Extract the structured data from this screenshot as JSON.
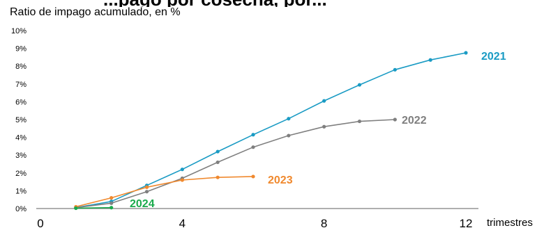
{
  "chart_data": {
    "type": "line",
    "title": "...pago por cosecha, por...",
    "subtitle": "Ratio de impago acumulado, en %",
    "xlabel": "trimestres",
    "ylabel": "",
    "xlim": [
      0,
      12
    ],
    "ylim": [
      0,
      10
    ],
    "xticks": [
      "0",
      "4",
      "8",
      "12"
    ],
    "yticks": [
      "0%",
      "1%",
      "2%",
      "3%",
      "4%",
      "5%",
      "6%",
      "7%",
      "8%",
      "9%",
      "10%"
    ],
    "grid": false,
    "legend": "none",
    "series": [
      {
        "name": "2021",
        "color": "#1a9bc4",
        "x": [
          1,
          2,
          3,
          4,
          5,
          6,
          7,
          8,
          9,
          10,
          11,
          12
        ],
        "y": [
          0.05,
          0.4,
          1.3,
          2.2,
          3.2,
          4.15,
          5.05,
          6.05,
          6.95,
          7.8,
          8.35,
          8.75
        ]
      },
      {
        "name": "2022",
        "color": "#7f7f7f",
        "x": [
          1,
          2,
          3,
          4,
          5,
          6,
          7,
          8,
          9,
          10
        ],
        "y": [
          0.05,
          0.3,
          0.95,
          1.7,
          2.6,
          3.45,
          4.1,
          4.6,
          4.9,
          5.0
        ]
      },
      {
        "name": "2023",
        "color": "#f0892e",
        "x": [
          1,
          2,
          3,
          4,
          5,
          6
        ],
        "y": [
          0.1,
          0.6,
          1.2,
          1.6,
          1.75,
          1.8
        ]
      },
      {
        "name": "2024",
        "color": "#1aaa4c",
        "x": [
          1,
          2
        ],
        "y": [
          0.02,
          0.05
        ]
      }
    ]
  }
}
